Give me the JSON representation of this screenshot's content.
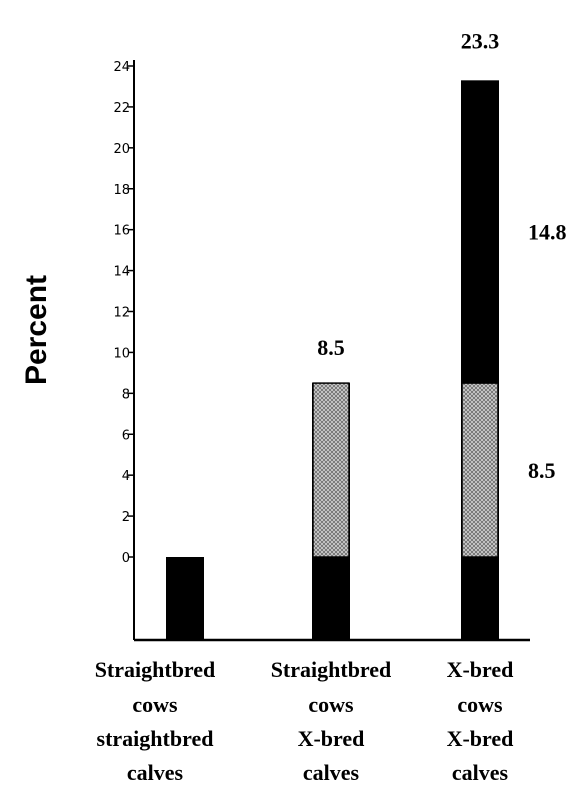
{
  "chart_data": {
    "type": "bar",
    "ylabel": "Percent",
    "ylim": [
      0,
      24
    ],
    "yticks": [
      0,
      2,
      4,
      6,
      8,
      10,
      12,
      14,
      16,
      18,
      20,
      22,
      24
    ],
    "ytick_labels": [
      "0",
      "2",
      "4",
      "6",
      "8",
      "10",
      "12",
      "14",
      "16",
      "18",
      "20",
      "22",
      "24"
    ],
    "categories": [
      [
        "Straightbred",
        "cows",
        "straightbred",
        "calves"
      ],
      [
        "Straightbred",
        "cows",
        "X-bred",
        "calves"
      ],
      [
        "X-bred",
        "cows",
        "X-bred",
        "calves"
      ]
    ],
    "series": [
      {
        "color": "#000000",
        "pattern": "solid",
        "values": [
          0,
          0,
          14.8
        ]
      },
      {
        "color": "#b8b8b8",
        "pattern": "crosshatch",
        "values": [
          0,
          8.5,
          8.5
        ]
      }
    ],
    "data_labels": [
      {
        "category_index": 1,
        "text": "8.5",
        "position": "above"
      },
      {
        "category_index": 2,
        "text": "23.3",
        "position": "above"
      },
      {
        "category_index": 2,
        "text": "14.8",
        "position": "right"
      },
      {
        "category_index": 2,
        "text": "8.5",
        "position": "right"
      }
    ]
  }
}
